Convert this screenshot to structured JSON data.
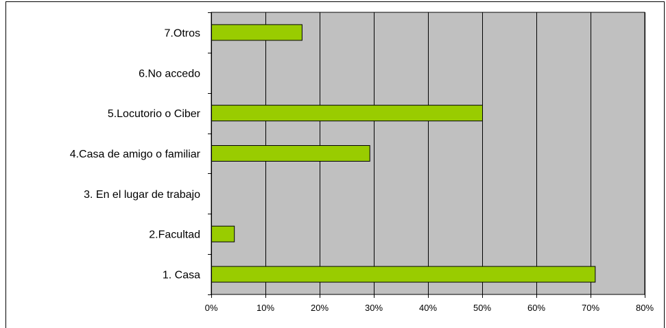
{
  "chart_data": {
    "type": "bar",
    "orientation": "horizontal",
    "categories": [
      "1. Casa",
      "2.Facultad",
      "3. En el lugar de trabajo",
      "4.Casa de amigo o familiar",
      "5.Locutorio o Ciber",
      "6.No accedo",
      "7.Otros"
    ],
    "values": [
      70.8,
      4.2,
      0,
      29.2,
      50.0,
      0,
      16.7
    ],
    "xlim": [
      0,
      80
    ],
    "xticks": [
      "0%",
      "10%",
      "20%",
      "30%",
      "40%",
      "50%",
      "60%",
      "70%",
      "80%"
    ],
    "grid": "vertical",
    "legend": "none",
    "colors": {
      "bar_fill": "#99cc00",
      "bar_stroke": "#000000",
      "plot_background": "#c0c0c0",
      "gridline": "#000000",
      "page_background": "#ffffff"
    }
  }
}
